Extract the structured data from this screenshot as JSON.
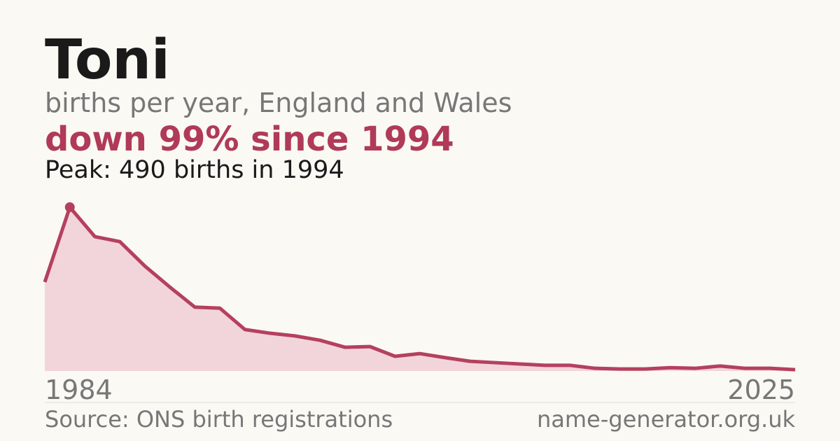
{
  "chart_data": {
    "type": "area",
    "title": "Toni",
    "subtitle": "births per year, England and Wales",
    "headline": "down 99% since 1994",
    "annotation": "Peak: 490 births in 1994",
    "categories": [
      "1984",
      null,
      null,
      null,
      null,
      null,
      null,
      null,
      null,
      null,
      null,
      null,
      null,
      null,
      null,
      null,
      null,
      null,
      null,
      null,
      null,
      null,
      null,
      null,
      null,
      null,
      null,
      null,
      null,
      null,
      "2025"
    ],
    "values": [
      266,
      490,
      402,
      387,
      314,
      251,
      191,
      188,
      124,
      113,
      105,
      92,
      71,
      73,
      44,
      52,
      40,
      29,
      25,
      21,
      17,
      17,
      8,
      6,
      6,
      10,
      8,
      15,
      8,
      8,
      4
    ],
    "color": "#b5405e",
    "area_color": "#f2d5db",
    "ylim": [
      0,
      490
    ],
    "source": "Source: ONS birth registrations",
    "site": "name-generator.org.uk"
  }
}
